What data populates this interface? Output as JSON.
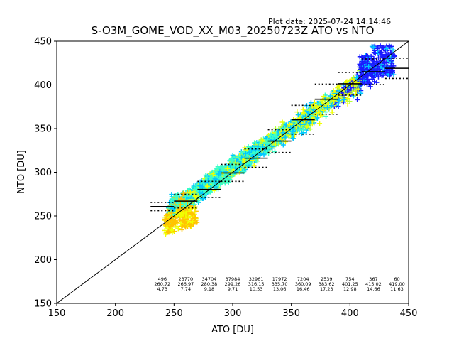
{
  "plot_date": "Plot date: 2025-07-24 14:14:46",
  "chart_data": {
    "type": "scatter",
    "title": "S-O3M_GOME_VOD_XX_M03_20250723Z ATO vs NTO",
    "xlabel": "ATO [DU]",
    "ylabel": "NTO [DU]",
    "xlim": [
      150,
      450
    ],
    "ylim": [
      150,
      450
    ],
    "xticks": [
      "150",
      "200",
      "250",
      "300",
      "350",
      "400",
      "450"
    ],
    "yticks": [
      "150",
      "200",
      "250",
      "300",
      "350",
      "400",
      "450"
    ],
    "grid": false,
    "legend": "none",
    "identity_line": true,
    "colors": {
      "blue": "#1a1aff",
      "cyan": "#00c8ff",
      "aqua": "#3affc8",
      "yellow_green": "#b4ff3c",
      "yellow": "#f0ff00",
      "orange": "#ffc400"
    },
    "bins": [
      {
        "x_start": 230,
        "x_end": 250,
        "count": "496",
        "mean": "260.72",
        "std": "4.73"
      },
      {
        "x_start": 250,
        "x_end": 270,
        "count": "23770",
        "mean": "266.97",
        "std": "7.74"
      },
      {
        "x_start": 270,
        "x_end": 290,
        "count": "34704",
        "mean": "280.38",
        "std": "9.18"
      },
      {
        "x_start": 290,
        "x_end": 310,
        "count": "37984",
        "mean": "299.26",
        "std": "9.71"
      },
      {
        "x_start": 310,
        "x_end": 330,
        "count": "32961",
        "mean": "316.15",
        "std": "10.53"
      },
      {
        "x_start": 330,
        "x_end": 350,
        "count": "17972",
        "mean": "335.70",
        "std": "13.06"
      },
      {
        "x_start": 350,
        "x_end": 370,
        "count": "7204",
        "mean": "360.09",
        "std": "16.46"
      },
      {
        "x_start": 370,
        "x_end": 390,
        "count": "2539",
        "mean": "383.62",
        "std": "17.23"
      },
      {
        "x_start": 390,
        "x_end": 410,
        "count": "754",
        "mean": "401.25",
        "std": "12.98"
      },
      {
        "x_start": 410,
        "x_end": 430,
        "count": "367",
        "mean": "415.02",
        "std": "14.66"
      },
      {
        "x_start": 430,
        "x_end": 450,
        "count": "60",
        "mean": "419.00",
        "std": "11.63"
      }
    ]
  }
}
